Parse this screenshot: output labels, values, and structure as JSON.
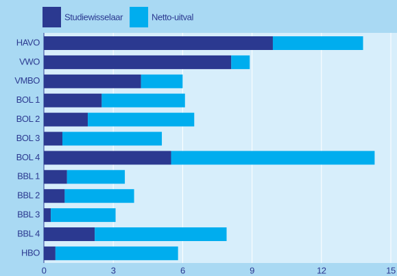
{
  "chart_data": {
    "type": "bar",
    "orientation": "horizontal",
    "stacked": true,
    "categories": [
      "HAVO",
      "VWO",
      "VMBO",
      "BOL 1",
      "BOL 2",
      "BOL 3",
      "BOL 4",
      "BBL 1",
      "BBL 2",
      "BBL 3",
      "BBL 4",
      "HBO"
    ],
    "series": [
      {
        "name": "Studiewisselaar",
        "color": "#2b3990",
        "values": [
          9.9,
          8.1,
          4.2,
          2.5,
          1.9,
          0.8,
          5.5,
          1.0,
          0.9,
          0.3,
          2.2,
          0.5
        ]
      },
      {
        "name": "Netto-uitval",
        "color": "#00adee",
        "values": [
          3.9,
          0.8,
          1.8,
          3.6,
          4.6,
          4.3,
          8.8,
          2.5,
          3.0,
          2.8,
          5.7,
          5.3
        ]
      }
    ],
    "xlim": [
      0,
      15
    ],
    "xticks": [
      0,
      3,
      6,
      9,
      12,
      15
    ],
    "grid": true,
    "legend": "top"
  }
}
